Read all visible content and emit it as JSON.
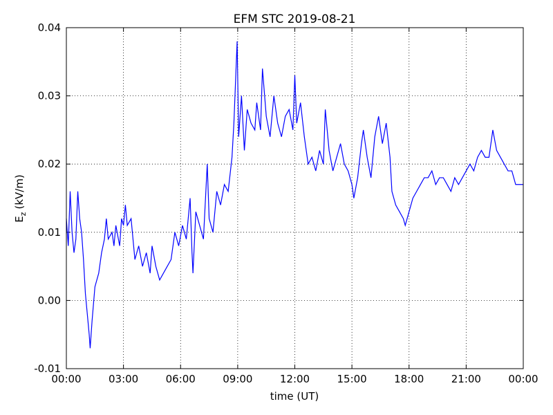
{
  "chart_data": {
    "type": "line",
    "title": "EFM STC    2019-08-21",
    "xlabel": "time (UT)",
    "ylabel_main": "E",
    "ylabel_sub": "z",
    "ylabel_unit": "(kV/m)",
    "xlim": [
      0,
      24
    ],
    "xticks": [
      {
        "value": 0,
        "label": "00:00"
      },
      {
        "value": 3,
        "label": "03:00"
      },
      {
        "value": 6,
        "label": "06:00"
      },
      {
        "value": 9,
        "label": "09:00"
      },
      {
        "value": 12,
        "label": "12:00"
      },
      {
        "value": 15,
        "label": "15:00"
      },
      {
        "value": 18,
        "label": "18:00"
      },
      {
        "value": 21,
        "label": "21:00"
      },
      {
        "value": 24,
        "label": "00:00"
      }
    ],
    "ylim": [
      -0.01,
      0.04
    ],
    "yticks": [
      -0.01,
      {
        "value": 0,
        "label": "0.00"
      },
      0.01,
      0.02,
      0.03,
      0.04
    ],
    "grid": true,
    "series": [
      {
        "color": "#0000ff",
        "x": [
          0,
          0.1,
          0.2,
          0.3,
          0.4,
          0.5,
          0.6,
          0.7,
          0.8,
          0.9,
          1.0,
          1.1,
          1.2,
          1.25,
          1.35,
          1.5,
          1.7,
          1.85,
          2.0,
          2.1,
          2.2,
          2.4,
          2.5,
          2.6,
          2.8,
          2.9,
          3.0,
          3.1,
          3.2,
          3.4,
          3.5,
          3.6,
          3.8,
          4.0,
          4.2,
          4.4,
          4.5,
          4.7,
          4.9,
          5.1,
          5.3,
          5.5,
          5.7,
          5.9,
          6.1,
          6.3,
          6.5,
          6.6,
          6.65,
          6.8,
          7.0,
          7.2,
          7.4,
          7.5,
          7.7,
          7.9,
          8.1,
          8.3,
          8.5,
          8.7,
          8.8,
          8.97,
          9.05,
          9.2,
          9.35,
          9.5,
          9.7,
          9.9,
          10.0,
          10.2,
          10.3,
          10.5,
          10.7,
          10.9,
          11.1,
          11.3,
          11.5,
          11.7,
          11.9,
          12.0,
          12.1,
          12.3,
          12.5,
          12.7,
          12.9,
          13.1,
          13.3,
          13.5,
          13.6,
          13.8,
          14.0,
          14.2,
          14.4,
          14.6,
          14.8,
          15.0,
          15.1,
          15.3,
          15.5,
          15.6,
          15.8,
          16.0,
          16.2,
          16.4,
          16.6,
          16.8,
          17.0,
          17.1,
          17.3,
          17.5,
          17.7,
          17.8,
          18.0,
          18.2,
          18.4,
          18.6,
          18.8,
          19.0,
          19.2,
          19.4,
          19.6,
          19.8,
          20.0,
          20.2,
          20.4,
          20.6,
          20.8,
          21.0,
          21.2,
          21.4,
          21.6,
          21.8,
          22.0,
          22.2,
          22.4,
          22.6,
          22.8,
          23.0,
          23.2,
          23.4,
          23.6,
          23.8,
          24.0
        ],
        "values": [
          0.012,
          0.008,
          0.016,
          0.01,
          0.007,
          0.009,
          0.016,
          0.012,
          0.01,
          0.006,
          0.001,
          -0.002,
          -0.005,
          -0.007,
          -0.003,
          0.002,
          0.004,
          0.007,
          0.009,
          0.012,
          0.009,
          0.01,
          0.008,
          0.011,
          0.008,
          0.012,
          0.011,
          0.014,
          0.011,
          0.012,
          0.009,
          0.006,
          0.008,
          0.005,
          0.007,
          0.004,
          0.008,
          0.005,
          0.003,
          0.004,
          0.005,
          0.006,
          0.01,
          0.008,
          0.011,
          0.009,
          0.015,
          0.007,
          0.004,
          0.013,
          0.011,
          0.009,
          0.02,
          0.012,
          0.01,
          0.016,
          0.014,
          0.017,
          0.016,
          0.021,
          0.026,
          0.038,
          0.024,
          0.03,
          0.022,
          0.028,
          0.026,
          0.025,
          0.029,
          0.025,
          0.034,
          0.027,
          0.024,
          0.03,
          0.026,
          0.024,
          0.027,
          0.028,
          0.025,
          0.033,
          0.026,
          0.029,
          0.024,
          0.02,
          0.021,
          0.019,
          0.022,
          0.02,
          0.028,
          0.022,
          0.019,
          0.021,
          0.023,
          0.02,
          0.019,
          0.017,
          0.015,
          0.018,
          0.023,
          0.025,
          0.021,
          0.018,
          0.024,
          0.027,
          0.023,
          0.026,
          0.021,
          0.016,
          0.014,
          0.013,
          0.012,
          0.011,
          0.013,
          0.015,
          0.016,
          0.017,
          0.018,
          0.018,
          0.019,
          0.017,
          0.018,
          0.018,
          0.017,
          0.016,
          0.018,
          0.017,
          0.018,
          0.019,
          0.02,
          0.019,
          0.021,
          0.022,
          0.021,
          0.021,
          0.025,
          0.022,
          0.021,
          0.02,
          0.019,
          0.019,
          0.017,
          0.017,
          0.017
        ]
      }
    ]
  }
}
